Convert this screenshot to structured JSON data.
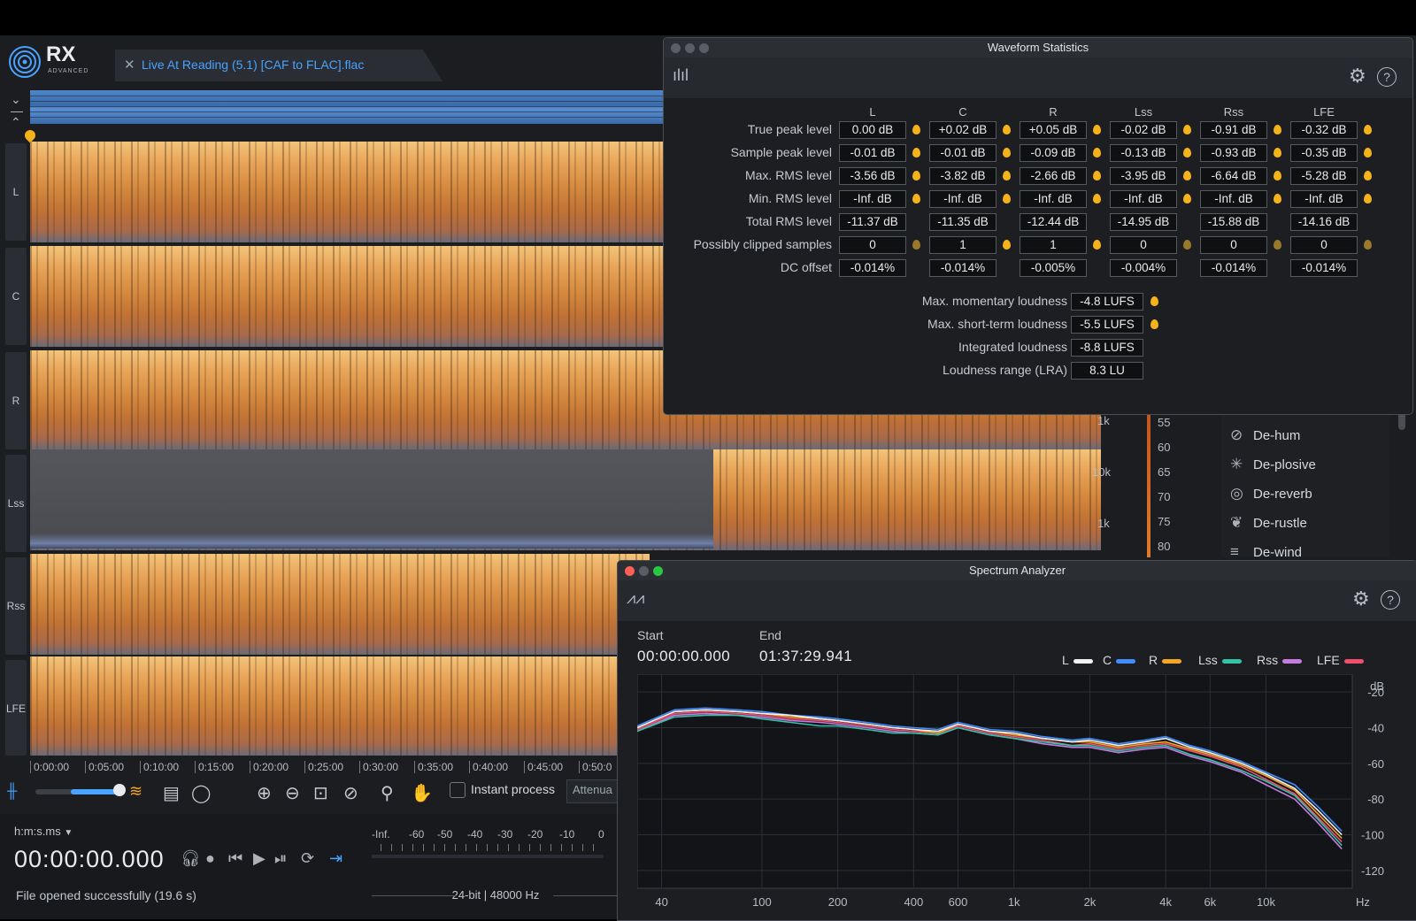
{
  "app": {
    "logo_text": "RX",
    "logo_sub": "ADVANCED",
    "file_tab": "Live At Reading (5.1) [CAF to FLAC].flac"
  },
  "channels": [
    "L",
    "C",
    "R",
    "Lss",
    "Rss",
    "LFE"
  ],
  "timeline": [
    "0:00:00",
    "0:05:00",
    "0:10:00",
    "0:15:00",
    "0:20:00",
    "0:25:00",
    "0:30:00",
    "0:35:00",
    "0:40:00",
    "0:45:00",
    "0:50:0"
  ],
  "toolbar": {
    "instant_process": "Instant process",
    "attenuation": "Attenua"
  },
  "transport": {
    "format": "h:m:s.ms",
    "timecode": "00:00:00.000",
    "status": "File opened successfully (19.6 s)",
    "meter_scale": [
      "-Inf.",
      "-60",
      "-50",
      "-40",
      "-30",
      "-20",
      "-10",
      "0"
    ],
    "bit_info": "24-bit | 48000 Hz"
  },
  "freq_labels": [
    "1k",
    "10k",
    "1k"
  ],
  "db_labels": [
    "55",
    "60",
    "65",
    "70",
    "75",
    "80"
  ],
  "modules": [
    "De-hum",
    "De-plosive",
    "De-reverb",
    "De-rustle",
    "De-wind"
  ],
  "waveform_stats": {
    "title": "Waveform Statistics",
    "columns": [
      "L",
      "C",
      "R",
      "Lss",
      "Rss",
      "LFE"
    ],
    "rows": [
      {
        "label": "True peak level",
        "values": [
          "0.00 dB",
          "+0.02 dB",
          "+0.05 dB",
          "-0.02 dB",
          "-0.91 dB",
          "-0.32 dB"
        ],
        "pins": true
      },
      {
        "label": "Sample peak level",
        "values": [
          "-0.01 dB",
          "-0.01 dB",
          "-0.09 dB",
          "-0.13 dB",
          "-0.93 dB",
          "-0.35 dB"
        ],
        "pins": true
      },
      {
        "label": "Max. RMS level",
        "values": [
          "-3.56 dB",
          "-3.82 dB",
          "-2.66 dB",
          "-3.95 dB",
          "-6.64 dB",
          "-5.28 dB"
        ],
        "pins": true
      },
      {
        "label": "Min. RMS level",
        "values": [
          "-Inf. dB",
          "-Inf. dB",
          "-Inf. dB",
          "-Inf. dB",
          "-Inf. dB",
          "-Inf. dB"
        ],
        "pins": true
      },
      {
        "label": "Total RMS level",
        "values": [
          "-11.37 dB",
          "-11.35 dB",
          "-12.44 dB",
          "-14.95 dB",
          "-15.88 dB",
          "-14.16 dB"
        ],
        "pins": false
      },
      {
        "label": "Possibly clipped samples",
        "values": [
          "0",
          "1",
          "1",
          "0",
          "0",
          "0"
        ],
        "pins": true
      },
      {
        "label": "DC offset",
        "values": [
          "-0.014%",
          "-0.014%",
          "-0.005%",
          "-0.004%",
          "-0.014%",
          "-0.014%"
        ],
        "pins": false
      }
    ],
    "loudness": [
      {
        "label": "Max. momentary loudness",
        "value": "-4.8 LUFS",
        "pin": true
      },
      {
        "label": "Max. short-term loudness",
        "value": "-5.5 LUFS",
        "pin": true
      },
      {
        "label": "Integrated loudness",
        "value": "-8.8 LUFS",
        "pin": false
      },
      {
        "label": "Loudness range (LRA)",
        "value": "8.3 LU",
        "pin": false
      }
    ]
  },
  "spectrum_analyzer": {
    "title": "Spectrum Analyzer",
    "start_label": "Start",
    "end_label": "End",
    "start": "00:00:00.000",
    "end": "01:37:29.941",
    "legend": [
      {
        "name": "L",
        "color": "#f2f2f2"
      },
      {
        "name": "C",
        "color": "#3f8dff"
      },
      {
        "name": "R",
        "color": "#f5a623"
      },
      {
        "name": "Lss",
        "color": "#36c2a8"
      },
      {
        "name": "Rss",
        "color": "#c77be0"
      },
      {
        "name": "LFE",
        "color": "#f0506e"
      }
    ]
  },
  "chart_data": {
    "type": "line",
    "title": "",
    "xlabel": "Hz",
    "ylabel": "dB",
    "x_scale": "log",
    "x_ticks": [
      "40",
      "100",
      "200",
      "400",
      "600",
      "1k",
      "2k",
      "4k",
      "6k",
      "10k"
    ],
    "y_ticks": [
      "-20",
      "-40",
      "-60",
      "-80",
      "-100",
      "-120"
    ],
    "ylim": [
      -130,
      -10
    ],
    "xlim": [
      32,
      22000
    ],
    "grid": true,
    "legend": "top-right",
    "x": [
      32,
      45,
      60,
      80,
      100,
      130,
      170,
      200,
      260,
      330,
      400,
      500,
      600,
      800,
      1000,
      1300,
      1700,
      2000,
      2600,
      3300,
      4000,
      5000,
      6000,
      8000,
      10000,
      13000,
      16000,
      20000
    ],
    "series": [
      {
        "name": "L",
        "values": [
          -40,
          -31,
          -30,
          -31,
          -32,
          -33,
          -35,
          -36,
          -38,
          -40,
          -41,
          -42,
          -38,
          -42,
          -43,
          -46,
          -48,
          -47,
          -50,
          -48,
          -46,
          -51,
          -54,
          -60,
          -66,
          -74,
          -86,
          -100
        ]
      },
      {
        "name": "C",
        "values": [
          -39,
          -30,
          -29,
          -30,
          -31,
          -33,
          -34,
          -35,
          -37,
          -39,
          -40,
          -41,
          -37,
          -41,
          -42,
          -45,
          -47,
          -46,
          -49,
          -47,
          -45,
          -50,
          -53,
          -59,
          -65,
          -72,
          -84,
          -98
        ]
      },
      {
        "name": "R",
        "values": [
          -40,
          -31,
          -30,
          -31,
          -32,
          -34,
          -35,
          -36,
          -38,
          -40,
          -41,
          -43,
          -38,
          -42,
          -44,
          -46,
          -48,
          -48,
          -51,
          -49,
          -48,
          -52,
          -55,
          -61,
          -67,
          -75,
          -88,
          -102
        ]
      },
      {
        "name": "Lss",
        "values": [
          -42,
          -34,
          -33,
          -33,
          -35,
          -37,
          -39,
          -39,
          -41,
          -43,
          -43,
          -44,
          -40,
          -44,
          -46,
          -48,
          -50,
          -50,
          -53,
          -51,
          -50,
          -55,
          -58,
          -64,
          -70,
          -78,
          -91,
          -106
        ]
      },
      {
        "name": "Rss",
        "values": [
          -42,
          -33,
          -32,
          -33,
          -34,
          -36,
          -37,
          -38,
          -40,
          -42,
          -43,
          -44,
          -40,
          -44,
          -46,
          -49,
          -51,
          -51,
          -54,
          -52,
          -51,
          -56,
          -59,
          -65,
          -72,
          -80,
          -93,
          -108
        ]
      },
      {
        "name": "LFE",
        "values": [
          -41,
          -32,
          -31,
          -32,
          -33,
          -35,
          -36,
          -37,
          -39,
          -41,
          -42,
          -43,
          -39,
          -43,
          -45,
          -47,
          -50,
          -49,
          -52,
          -50,
          -49,
          -53,
          -56,
          -62,
          -69,
          -77,
          -90,
          -104
        ]
      }
    ]
  }
}
